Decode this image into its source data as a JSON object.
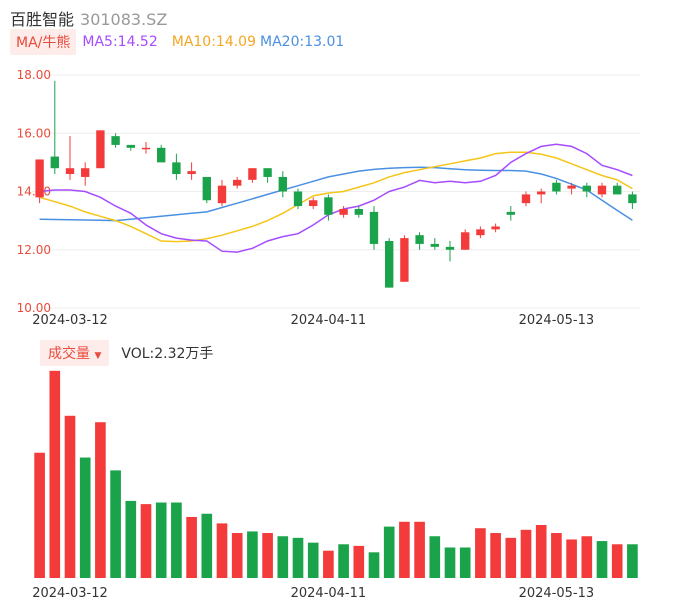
{
  "header": {
    "name": "百胜智能",
    "code": "301083.SZ"
  },
  "ma_legend": {
    "tag": "MA/牛熊",
    "ma5": "MA5:14.52",
    "ma10": "MA10:14.09",
    "ma20": "MA20:13.01"
  },
  "volume_legend": {
    "tag": "成交量",
    "value": "VOL:2.32万手"
  },
  "colors": {
    "up": "#f33b3b",
    "down": "#1aa34a",
    "ma5": "#a64cff",
    "ma10": "#f5c518",
    "ma20": "#4a90e2"
  },
  "chart_data": [
    {
      "type": "candlestick",
      "y_ticks": [
        "18.00",
        "16.00",
        "14.00",
        "12.00",
        "10.00"
      ],
      "x_ticks": [
        "2024-03-12",
        "2024-04-11",
        "2024-05-13"
      ],
      "ylim": [
        10,
        18
      ],
      "candles": [
        {
          "o": 13.8,
          "c": 15.1,
          "h": 15.1,
          "l": 13.6
        },
        {
          "o": 15.2,
          "c": 14.8,
          "h": 17.8,
          "l": 14.6
        },
        {
          "o": 14.6,
          "c": 14.8,
          "h": 15.9,
          "l": 14.4
        },
        {
          "o": 14.5,
          "c": 14.8,
          "h": 15.0,
          "l": 14.2
        },
        {
          "o": 14.8,
          "c": 16.1,
          "h": 16.1,
          "l": 14.8
        },
        {
          "o": 15.9,
          "c": 15.6,
          "h": 16.0,
          "l": 15.5
        },
        {
          "o": 15.6,
          "c": 15.5,
          "h": 15.6,
          "l": 15.4
        },
        {
          "o": 15.5,
          "c": 15.5,
          "h": 15.7,
          "l": 15.3
        },
        {
          "o": 15.5,
          "c": 15.0,
          "h": 15.6,
          "l": 15.0
        },
        {
          "o": 15.0,
          "c": 14.6,
          "h": 15.3,
          "l": 14.4
        },
        {
          "o": 14.6,
          "c": 14.7,
          "h": 15.0,
          "l": 14.4
        },
        {
          "o": 14.5,
          "c": 13.7,
          "h": 14.5,
          "l": 13.6
        },
        {
          "o": 13.6,
          "c": 14.2,
          "h": 14.4,
          "l": 13.5
        },
        {
          "o": 14.2,
          "c": 14.4,
          "h": 14.5,
          "l": 14.1
        },
        {
          "o": 14.4,
          "c": 14.8,
          "h": 14.8,
          "l": 14.3
        },
        {
          "o": 14.8,
          "c": 14.5,
          "h": 14.8,
          "l": 14.3
        },
        {
          "o": 14.5,
          "c": 14.0,
          "h": 14.7,
          "l": 13.8
        },
        {
          "o": 14.0,
          "c": 13.5,
          "h": 14.1,
          "l": 13.4
        },
        {
          "o": 13.5,
          "c": 13.7,
          "h": 13.8,
          "l": 13.4
        },
        {
          "o": 13.8,
          "c": 13.2,
          "h": 13.9,
          "l": 13.0
        },
        {
          "o": 13.2,
          "c": 13.4,
          "h": 13.5,
          "l": 13.1
        },
        {
          "o": 13.4,
          "c": 13.2,
          "h": 13.5,
          "l": 13.1
        },
        {
          "o": 13.3,
          "c": 12.2,
          "h": 13.5,
          "l": 12.0
        },
        {
          "o": 12.3,
          "c": 10.7,
          "h": 12.4,
          "l": 10.7
        },
        {
          "o": 10.9,
          "c": 12.4,
          "h": 12.5,
          "l": 10.9
        },
        {
          "o": 12.5,
          "c": 12.2,
          "h": 12.6,
          "l": 12.0
        },
        {
          "o": 12.2,
          "c": 12.1,
          "h": 12.4,
          "l": 12.0
        },
        {
          "o": 12.1,
          "c": 12.0,
          "h": 12.3,
          "l": 11.6
        },
        {
          "o": 12.0,
          "c": 12.6,
          "h": 12.7,
          "l": 12.0
        },
        {
          "o": 12.5,
          "c": 12.7,
          "h": 12.8,
          "l": 12.4
        },
        {
          "o": 12.7,
          "c": 12.8,
          "h": 12.9,
          "l": 12.6
        },
        {
          "o": 13.3,
          "c": 13.2,
          "h": 13.5,
          "l": 13.0
        },
        {
          "o": 13.6,
          "c": 13.9,
          "h": 14.0,
          "l": 13.5
        },
        {
          "o": 13.9,
          "c": 14.0,
          "h": 14.1,
          "l": 13.6
        },
        {
          "o": 14.3,
          "c": 14.0,
          "h": 14.4,
          "l": 13.9
        },
        {
          "o": 14.1,
          "c": 14.2,
          "h": 14.3,
          "l": 13.9
        },
        {
          "o": 14.2,
          "c": 14.0,
          "h": 14.3,
          "l": 13.8
        },
        {
          "o": 13.9,
          "c": 14.2,
          "h": 14.3,
          "l": 13.8
        },
        {
          "o": 14.2,
          "c": 13.9,
          "h": 14.3,
          "l": 13.9
        },
        {
          "o": 13.9,
          "c": 13.6,
          "h": 14.0,
          "l": 13.4
        }
      ],
      "ma5": [
        14.0,
        14.05,
        14.05,
        14.0,
        13.8,
        13.5,
        13.25,
        12.85,
        12.55,
        12.4,
        12.33,
        12.3,
        11.95,
        11.92,
        12.05,
        12.3,
        12.45,
        12.55,
        12.85,
        13.2,
        13.4,
        13.5,
        13.7,
        14.0,
        14.15,
        14.38,
        14.3,
        14.35,
        14.3,
        14.35,
        14.55,
        15.0,
        15.3,
        15.55,
        15.62,
        15.55,
        15.3,
        14.9,
        14.75,
        14.55
      ],
      "ma10": [
        13.8,
        13.65,
        13.5,
        13.3,
        13.15,
        13.0,
        12.8,
        12.55,
        12.3,
        12.28,
        12.3,
        12.38,
        12.5,
        12.65,
        12.8,
        13.0,
        13.25,
        13.55,
        13.85,
        13.95,
        14.0,
        14.15,
        14.3,
        14.5,
        14.65,
        14.75,
        14.85,
        14.95,
        15.05,
        15.15,
        15.3,
        15.35,
        15.35,
        15.28,
        15.15,
        14.95,
        14.75,
        14.55,
        14.4,
        14.1
      ],
      "ma20": [
        13.05,
        13.04,
        13.03,
        13.02,
        13.01,
        13.0,
        13.05,
        13.1,
        13.15,
        13.2,
        13.25,
        13.3,
        13.45,
        13.6,
        13.75,
        13.9,
        14.05,
        14.2,
        14.35,
        14.5,
        14.6,
        14.7,
        14.76,
        14.8,
        14.82,
        14.83,
        14.82,
        14.78,
        14.75,
        14.73,
        14.72,
        14.72,
        14.7,
        14.6,
        14.45,
        14.25,
        14.05,
        13.7,
        13.35,
        13.01
      ]
    },
    {
      "type": "bar",
      "name": "成交量",
      "x_ticks": [
        "2024-03-12",
        "2024-04-11",
        "2024-05-13"
      ],
      "values": [
        3.9,
        6.45,
        5.05,
        3.75,
        4.85,
        3.35,
        2.4,
        2.3,
        2.35,
        2.35,
        1.9,
        2.0,
        1.7,
        1.4,
        1.45,
        1.4,
        1.3,
        1.25,
        1.1,
        0.85,
        1.05,
        1.0,
        0.8,
        1.6,
        1.75,
        1.75,
        1.3,
        0.95,
        0.95,
        1.55,
        1.4,
        1.25,
        1.5,
        1.65,
        1.4,
        1.2,
        1.3,
        1.15,
        1.05,
        1.05
      ],
      "up": [
        true,
        true,
        true,
        false,
        true,
        false,
        false,
        true,
        false,
        false,
        true,
        false,
        true,
        true,
        false,
        true,
        false,
        false,
        false,
        true,
        false,
        true,
        false,
        false,
        true,
        true,
        false,
        false,
        false,
        true,
        true,
        true,
        true,
        true,
        true,
        true,
        true,
        false,
        true,
        false
      ]
    }
  ]
}
